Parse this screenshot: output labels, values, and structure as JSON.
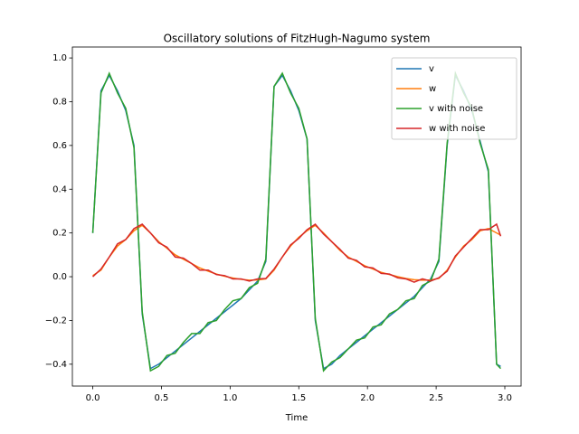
{
  "chart_data": {
    "type": "line",
    "title": "Oscillatory solutions of FitzHugh-Nagumo system",
    "xlabel": "Time",
    "x": [
      0,
      0.06,
      0.12,
      0.18,
      0.24,
      0.3,
      0.36,
      0.42,
      0.48,
      0.54,
      0.6,
      0.66,
      0.72,
      0.78,
      0.84,
      0.9,
      0.96,
      1.02,
      1.08,
      1.14,
      1.2,
      1.26,
      1.32,
      1.38,
      1.44,
      1.5,
      1.56,
      1.62,
      1.68,
      1.74,
      1.8,
      1.86,
      1.92,
      1.98,
      2.04,
      2.1,
      2.16,
      2.22,
      2.28,
      2.34,
      2.4,
      2.46,
      2.52,
      2.58,
      2.64,
      2.7,
      2.76,
      2.82,
      2.88,
      2.94,
      2.97
    ],
    "series": [
      {
        "name": "v",
        "color": "#1f77b4",
        "values": [
          0.2,
          0.85,
          0.92,
          0.85,
          0.76,
          0.6,
          -0.17,
          -0.42,
          -0.4,
          -0.37,
          -0.34,
          -0.31,
          -0.28,
          -0.25,
          -0.22,
          -0.19,
          -0.16,
          -0.13,
          -0.1,
          -0.06,
          -0.02,
          0.07,
          0.87,
          0.92,
          0.85,
          0.76,
          0.63,
          -0.2,
          -0.42,
          -0.4,
          -0.36,
          -0.33,
          -0.3,
          -0.27,
          -0.24,
          -0.21,
          -0.18,
          -0.15,
          -0.12,
          -0.09,
          -0.05,
          -0.01,
          0.07,
          0.6,
          0.92,
          0.85,
          0.76,
          0.62,
          0.48,
          -0.4,
          -0.41
        ]
      },
      {
        "name": "w",
        "color": "#ff7f0e",
        "values": [
          0.005,
          0.03,
          0.09,
          0.14,
          0.17,
          0.21,
          0.235,
          0.2,
          0.16,
          0.13,
          0.1,
          0.08,
          0.06,
          0.04,
          0.025,
          0.012,
          0.002,
          -0.006,
          -0.012,
          -0.016,
          -0.015,
          -0.01,
          0.03,
          0.09,
          0.14,
          0.18,
          0.21,
          0.235,
          0.2,
          0.16,
          0.12,
          0.09,
          0.07,
          0.05,
          0.035,
          0.02,
          0.01,
          0.0,
          -0.008,
          -0.014,
          -0.016,
          -0.015,
          -0.008,
          0.03,
          0.09,
          0.14,
          0.17,
          0.21,
          0.22,
          0.2,
          0.19
        ]
      },
      {
        "name": "v with noise",
        "color": "#2ca02c",
        "values": [
          0.2,
          0.84,
          0.93,
          0.84,
          0.77,
          0.59,
          -0.16,
          -0.43,
          -0.41,
          -0.36,
          -0.35,
          -0.3,
          -0.26,
          -0.26,
          -0.21,
          -0.2,
          -0.15,
          -0.11,
          -0.1,
          -0.05,
          -0.03,
          0.08,
          0.87,
          0.93,
          0.84,
          0.77,
          0.63,
          -0.19,
          -0.43,
          -0.39,
          -0.37,
          -0.33,
          -0.29,
          -0.28,
          -0.23,
          -0.22,
          -0.17,
          -0.15,
          -0.11,
          -0.1,
          -0.04,
          -0.02,
          0.08,
          0.61,
          0.93,
          0.84,
          0.77,
          0.61,
          0.49,
          -0.4,
          -0.42
        ]
      },
      {
        "name": "w with noise",
        "color": "#d62728",
        "values": [
          0.0,
          0.035,
          0.09,
          0.15,
          0.17,
          0.22,
          0.24,
          0.2,
          0.155,
          0.135,
          0.09,
          0.085,
          0.06,
          0.03,
          0.03,
          0.01,
          0.005,
          -0.01,
          -0.01,
          -0.02,
          -0.01,
          -0.008,
          0.035,
          0.09,
          0.145,
          0.175,
          0.215,
          0.24,
          0.195,
          0.16,
          0.125,
          0.085,
          0.075,
          0.045,
          0.04,
          0.015,
          0.012,
          -0.005,
          -0.01,
          -0.025,
          -0.01,
          -0.02,
          -0.005,
          0.025,
          0.095,
          0.135,
          0.175,
          0.215,
          0.215,
          0.24,
          0.185
        ]
      }
    ],
    "xlim": [
      -0.1485,
      3.1185
    ],
    "ylim": [
      -0.5,
      1.05
    ],
    "xticks": [
      {
        "value": 0,
        "label": "0.0"
      },
      0.5,
      {
        "value": 1,
        "label": "1.0"
      },
      1.5,
      {
        "value": 2,
        "label": "2.0"
      },
      2.5,
      {
        "value": 3,
        "label": "3.0"
      }
    ],
    "yticks": [
      {
        "value": -0.4,
        "label": "−0.4"
      },
      {
        "value": -0.2,
        "label": "−0.2"
      },
      {
        "value": 0,
        "label": "0.0"
      },
      0.2,
      0.4,
      0.6,
      0.8,
      {
        "value": 1,
        "label": "1.0"
      }
    ],
    "legend": "upper right"
  }
}
